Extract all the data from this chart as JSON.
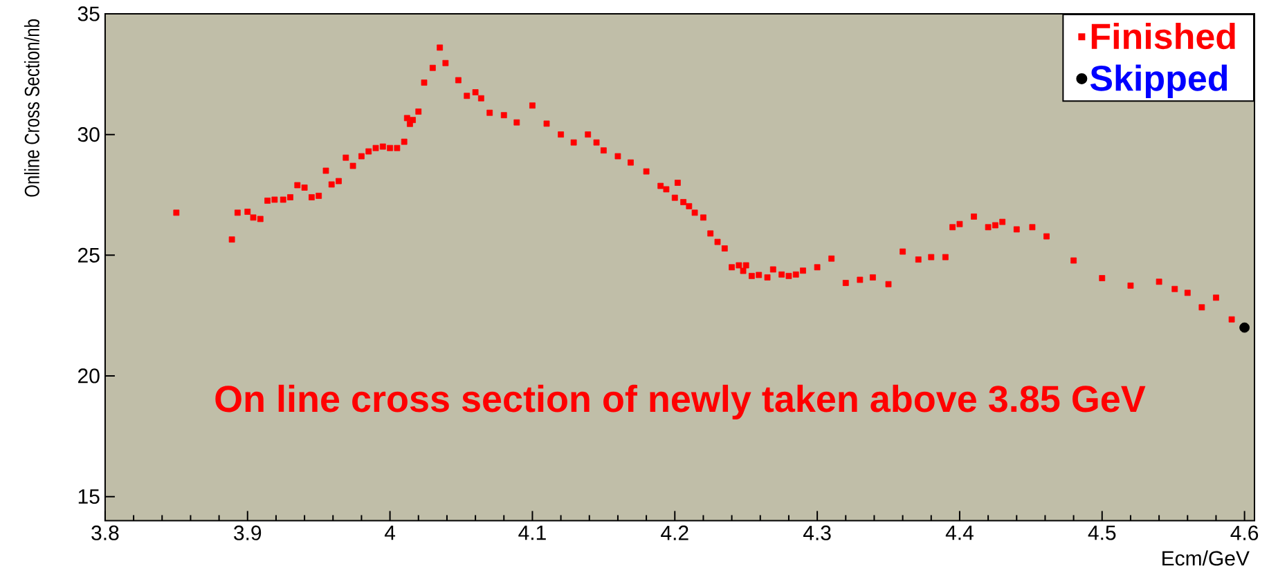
{
  "chart_data": {
    "type": "scatter",
    "xlabel": "Ecm/GeV",
    "ylabel": "Online Cross Section/nb",
    "xlim": [
      3.8,
      4.607
    ],
    "ylim": [
      14,
      35
    ],
    "xticks": [
      {
        "value": 3.8,
        "label": "3.8"
      },
      {
        "value": 3.9,
        "label": "3.9"
      },
      {
        "value": 4.0,
        "label": "4"
      },
      {
        "value": 4.1,
        "label": "4.1"
      },
      {
        "value": 4.2,
        "label": "4.2"
      },
      {
        "value": 4.3,
        "label": "4.3"
      },
      {
        "value": 4.4,
        "label": "4.4"
      },
      {
        "value": 4.5,
        "label": "4.5"
      },
      {
        "value": 4.6,
        "label": "4.6"
      }
    ],
    "yticks": [
      15,
      20,
      25,
      30,
      35
    ],
    "legend": "top right",
    "annotations": [
      "On line cross section of newly taken above 3.85 GeV"
    ],
    "series": [
      {
        "name": "Finished",
        "color": "#ff0000",
        "marker": "square",
        "x": [
          3.85,
          3.889,
          3.893,
          3.9,
          3.904,
          3.909,
          3.914,
          3.919,
          3.925,
          3.93,
          3.935,
          3.94,
          3.945,
          3.95,
          3.955,
          3.959,
          3.964,
          3.969,
          3.974,
          3.98,
          3.985,
          3.99,
          3.995,
          4.0,
          4.005,
          4.01,
          4.012,
          4.014,
          4.016,
          4.02,
          4.024,
          4.03,
          4.035,
          4.039,
          4.048,
          4.054,
          4.06,
          4.064,
          4.07,
          4.08,
          4.089,
          4.1,
          4.11,
          4.12,
          4.129,
          4.139,
          4.145,
          4.15,
          4.16,
          4.169,
          4.18,
          4.19,
          4.194,
          4.2,
          4.202,
          4.206,
          4.21,
          4.214,
          4.22,
          4.225,
          4.23,
          4.235,
          4.24,
          4.245,
          4.248,
          4.25,
          4.254,
          4.259,
          4.265,
          4.269,
          4.275,
          4.28,
          4.285,
          4.29,
          4.3,
          4.31,
          4.32,
          4.33,
          4.339,
          4.35,
          4.36,
          4.371,
          4.38,
          4.39,
          4.395,
          4.4,
          4.41,
          4.42,
          4.425,
          4.43,
          4.44,
          4.451,
          4.461,
          4.48,
          4.5,
          4.52,
          4.54,
          4.551,
          4.56,
          4.57,
          4.58,
          4.591
        ],
        "values": [
          26.76,
          25.65,
          26.76,
          26.8,
          26.56,
          26.5,
          27.26,
          27.3,
          27.3,
          27.4,
          27.9,
          27.8,
          27.4,
          27.46,
          28.5,
          27.93,
          28.07,
          29.04,
          28.7,
          29.1,
          29.3,
          29.44,
          29.5,
          29.44,
          29.44,
          29.7,
          30.68,
          30.44,
          30.6,
          30.95,
          32.15,
          32.76,
          33.6,
          32.96,
          32.25,
          31.6,
          31.75,
          31.5,
          30.9,
          30.8,
          30.5,
          31.2,
          30.45,
          30.0,
          29.67,
          30.0,
          29.67,
          29.34,
          29.1,
          28.84,
          28.47,
          27.87,
          27.73,
          27.38,
          28.0,
          27.2,
          27.03,
          26.76,
          26.56,
          25.9,
          25.55,
          25.28,
          24.5,
          24.58,
          24.35,
          24.58,
          24.14,
          24.18,
          24.08,
          24.41,
          24.2,
          24.14,
          24.2,
          24.36,
          24.5,
          24.86,
          23.85,
          23.98,
          24.08,
          23.8,
          25.15,
          24.82,
          24.92,
          24.92,
          26.16,
          26.29,
          26.6,
          26.16,
          26.24,
          26.38,
          26.07,
          26.16,
          25.78,
          24.78,
          24.05,
          23.74,
          23.9,
          23.6,
          23.44,
          22.84,
          23.24,
          22.34
        ]
      },
      {
        "name": "Skipped",
        "color": "#000000",
        "marker": "circle",
        "x": [
          4.6
        ],
        "values": [
          22.0
        ]
      }
    ]
  }
}
